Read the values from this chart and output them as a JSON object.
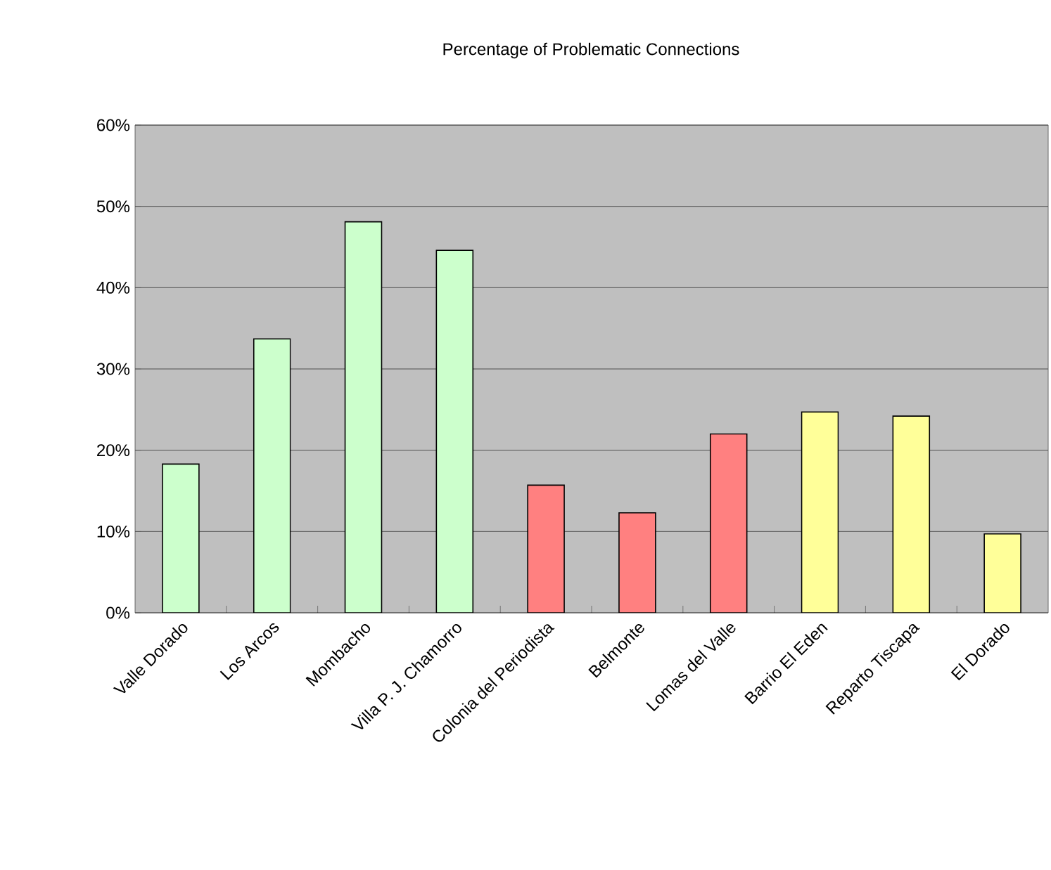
{
  "chart_data": {
    "type": "bar",
    "title": "Percentage of Problematic Connections",
    "categories": [
      "Valle Dorado",
      "Los Arcos",
      "Mombacho",
      "Villa P. J. Chamorro",
      "Colonia del Periodista",
      "Belmonte",
      "Lomas del Valle",
      "Barrio El Eden",
      "Reparto Tiscapa",
      "El Dorado"
    ],
    "values": [
      18.3,
      33.7,
      48.1,
      44.6,
      15.7,
      12.3,
      22.0,
      24.7,
      24.2,
      9.7
    ],
    "colors": [
      "#ccffcc",
      "#ccffcc",
      "#ccffcc",
      "#ccffcc",
      "#ff8080",
      "#ff8080",
      "#ff8080",
      "#ffff99",
      "#ffff99",
      "#ffff99"
    ],
    "ylim": [
      0,
      60
    ],
    "yticks": [
      {
        "value": 0,
        "label": "0%"
      },
      {
        "value": 10,
        "label": "10%"
      },
      {
        "value": 20,
        "label": "20%"
      },
      {
        "value": 30,
        "label": "30%"
      },
      {
        "value": 40,
        "label": "40%"
      },
      {
        "value": 50,
        "label": "50%"
      },
      {
        "value": 60,
        "label": "60%"
      }
    ],
    "grid": "y"
  }
}
